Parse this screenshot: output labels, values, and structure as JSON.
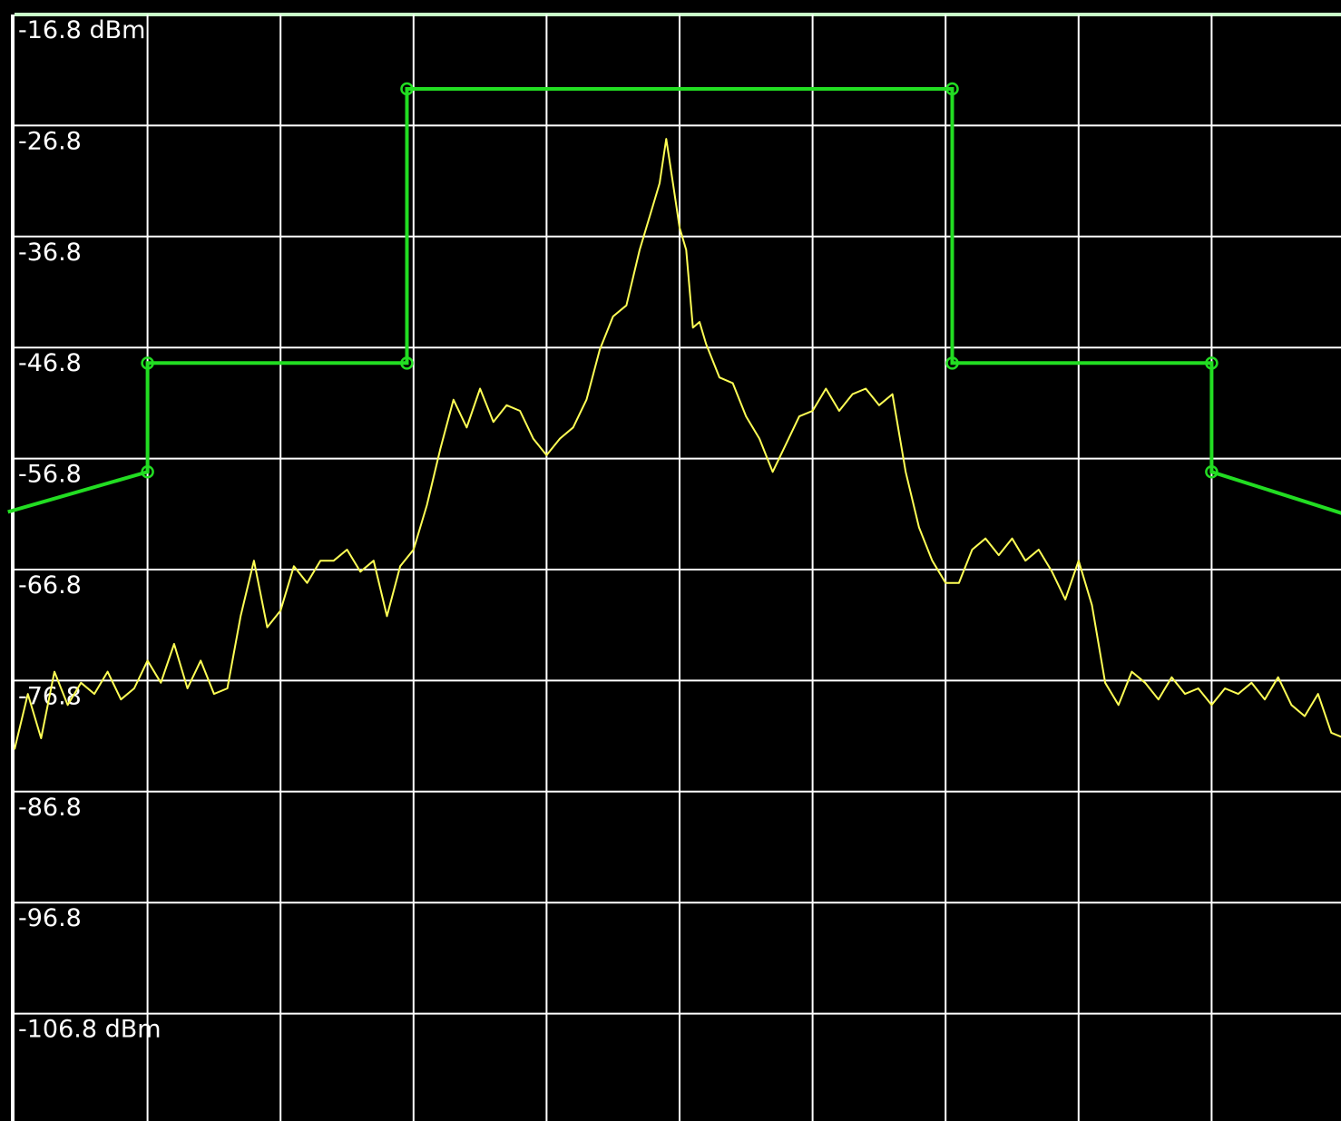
{
  "chart_data": {
    "type": "line",
    "title": "",
    "xlabel": "",
    "ylabel": "",
    "ylim": [
      -116.8,
      -16.8
    ],
    "xlim": [
      0,
      10
    ],
    "grid": true,
    "y_tick_labels": [
      "-16.8 dBm",
      "-26.8",
      "-36.8",
      "-46.8",
      "-56.8",
      "-66.8",
      "-76.8",
      "-86.8",
      "-96.8",
      "-106.8 dBm"
    ],
    "y_ticks": [
      -16.8,
      -26.8,
      -36.8,
      -46.8,
      -56.8,
      -66.8,
      -76.8,
      -86.8,
      -96.8,
      -106.8
    ],
    "x_gridlines": [
      1,
      2,
      3,
      4,
      5,
      6,
      7,
      8,
      9
    ],
    "colors": {
      "background": "#000000",
      "grid": "#ffffff",
      "limit_line": "#22dd22",
      "trace": "#ffff55"
    },
    "series": [
      {
        "role": "limit-mask",
        "x": [
          -0.05,
          1.0,
          1.0,
          2.95,
          2.95,
          7.05,
          7.05,
          9.0,
          9.0,
          10.05
        ],
        "y": [
          -61.6,
          -58.0,
          -48.2,
          -48.2,
          -23.5,
          -23.5,
          -48.2,
          -48.2,
          -58.0,
          -62.0
        ],
        "markers": [
          1,
          2,
          3,
          4,
          5,
          6,
          7,
          8
        ]
      },
      {
        "role": "spectrum-trace",
        "x": [
          0.0,
          0.1,
          0.2,
          0.3,
          0.4,
          0.5,
          0.6,
          0.7,
          0.8,
          0.9,
          1.0,
          1.1,
          1.2,
          1.3,
          1.4,
          1.5,
          1.6,
          1.7,
          1.8,
          1.9,
          2.0,
          2.1,
          2.2,
          2.3,
          2.4,
          2.5,
          2.6,
          2.7,
          2.8,
          2.9,
          3.0,
          3.1,
          3.2,
          3.3,
          3.4,
          3.5,
          3.6,
          3.7,
          3.8,
          3.9,
          4.0,
          4.1,
          4.2,
          4.3,
          4.4,
          4.5,
          4.6,
          4.7,
          4.8,
          4.85,
          4.9,
          4.95,
          5.0,
          5.05,
          5.1,
          5.15,
          5.2,
          5.3,
          5.4,
          5.5,
          5.6,
          5.7,
          5.8,
          5.9,
          6.0,
          6.1,
          6.2,
          6.3,
          6.4,
          6.5,
          6.6,
          6.7,
          6.8,
          6.9,
          7.0,
          7.1,
          7.2,
          7.3,
          7.4,
          7.5,
          7.6,
          7.7,
          7.8,
          7.9,
          8.0,
          8.1,
          8.2,
          8.3,
          8.4,
          8.5,
          8.6,
          8.7,
          8.8,
          8.9,
          9.0,
          9.1,
          9.2,
          9.3,
          9.4,
          9.5,
          9.6,
          9.7,
          9.8,
          9.9,
          10.0
        ],
        "y": [
          -83.0,
          -78.0,
          -82.0,
          -76.0,
          -79.0,
          -77.0,
          -78.0,
          -76.0,
          -78.5,
          -77.5,
          -75.0,
          -77.0,
          -73.5,
          -77.5,
          -75.0,
          -78.0,
          -77.5,
          -71.0,
          -66.0,
          -72.0,
          -70.5,
          -66.5,
          -68.0,
          -66.0,
          -66.0,
          -65.0,
          -67.0,
          -66.0,
          -71.0,
          -66.5,
          -65.0,
          -61.0,
          -56.0,
          -51.5,
          -54.0,
          -50.5,
          -53.5,
          -52.0,
          -52.5,
          -55.0,
          -56.5,
          -55.0,
          -54.0,
          -51.5,
          -47.0,
          -44.0,
          -43.0,
          -38.0,
          -34.0,
          -32.0,
          -28.0,
          -32.0,
          -36.0,
          -38.0,
          -45.0,
          -44.5,
          -46.5,
          -49.5,
          -50.0,
          -53.0,
          -55.0,
          -58.0,
          -55.5,
          -53.0,
          -52.5,
          -50.5,
          -52.5,
          -51.0,
          -50.5,
          -52.0,
          -51.0,
          -58.0,
          -63.0,
          -66.0,
          -68.0,
          -68.0,
          -65.0,
          -64.0,
          -65.5,
          -64.0,
          -66.0,
          -65.0,
          -67.0,
          -69.5,
          -66.0,
          -70.0,
          -77.0,
          -79.0,
          -76.0,
          -77.0,
          -78.5,
          -76.5,
          -78.0,
          -77.5,
          -79.0,
          -77.5,
          -78.0,
          -77.0,
          -78.5,
          -76.5,
          -79.0,
          -80.0,
          -78.0,
          -81.5,
          -82.0
        ]
      }
    ]
  }
}
